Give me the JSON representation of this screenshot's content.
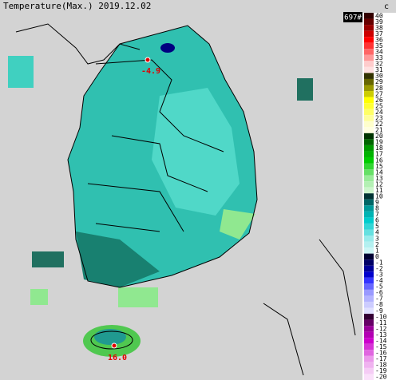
{
  "header": {
    "title": "Temperature(Max.) 2019.12.02",
    "unit": "c",
    "count": "697#"
  },
  "markers": [
    {
      "label": "-4.9"
    },
    {
      "label": "16.0"
    }
  ],
  "scale": {
    "labels": [
      40,
      39,
      38,
      37,
      36,
      35,
      34,
      33,
      32,
      31,
      30,
      29,
      28,
      27,
      26,
      25,
      24,
      23,
      22,
      21,
      20,
      19,
      18,
      17,
      16,
      15,
      14,
      13,
      12,
      11,
      10,
      9,
      8,
      7,
      6,
      5,
      4,
      3,
      2,
      1,
      0,
      -1,
      -2,
      -3,
      -4,
      -5,
      -6,
      -7,
      -8,
      -9,
      -10,
      -11,
      -12,
      -13,
      -14,
      -15,
      -16,
      -17,
      -18,
      -19,
      -20
    ],
    "colors": [
      "#330000",
      "#660000",
      "#990000",
      "#cc0000",
      "#ff0000",
      "#ff3333",
      "#ff6666",
      "#ff9999",
      "#ffcccc",
      "#ffe0e0",
      "#333300",
      "#666600",
      "#999900",
      "#cccc00",
      "#ffff00",
      "#ffff33",
      "#ffff66",
      "#ffff99",
      "#ffffcc",
      "#ffffe0",
      "#003300",
      "#006600",
      "#009900",
      "#00b300",
      "#00cc00",
      "#33d633",
      "#66e066",
      "#99eb99",
      "#b3f0b3",
      "#ccf5cc",
      "#003333",
      "#006666",
      "#009999",
      "#00b3b3",
      "#00cccc",
      "#33d6d6",
      "#66e0e0",
      "#99ebeb",
      "#b3f0f0",
      "#ccf5f5",
      "#000033",
      "#000066",
      "#000099",
      "#0000cc",
      "#3333ff",
      "#6666ff",
      "#9999ff",
      "#b3b3ff",
      "#ccccff",
      "#e0e0ff",
      "#330033",
      "#660066",
      "#990099",
      "#b300b3",
      "#cc00cc",
      "#d633d6",
      "#e066e0",
      "#eb99eb",
      "#f0b3f0",
      "#f5ccf5",
      "#fae0fa"
    ]
  }
}
